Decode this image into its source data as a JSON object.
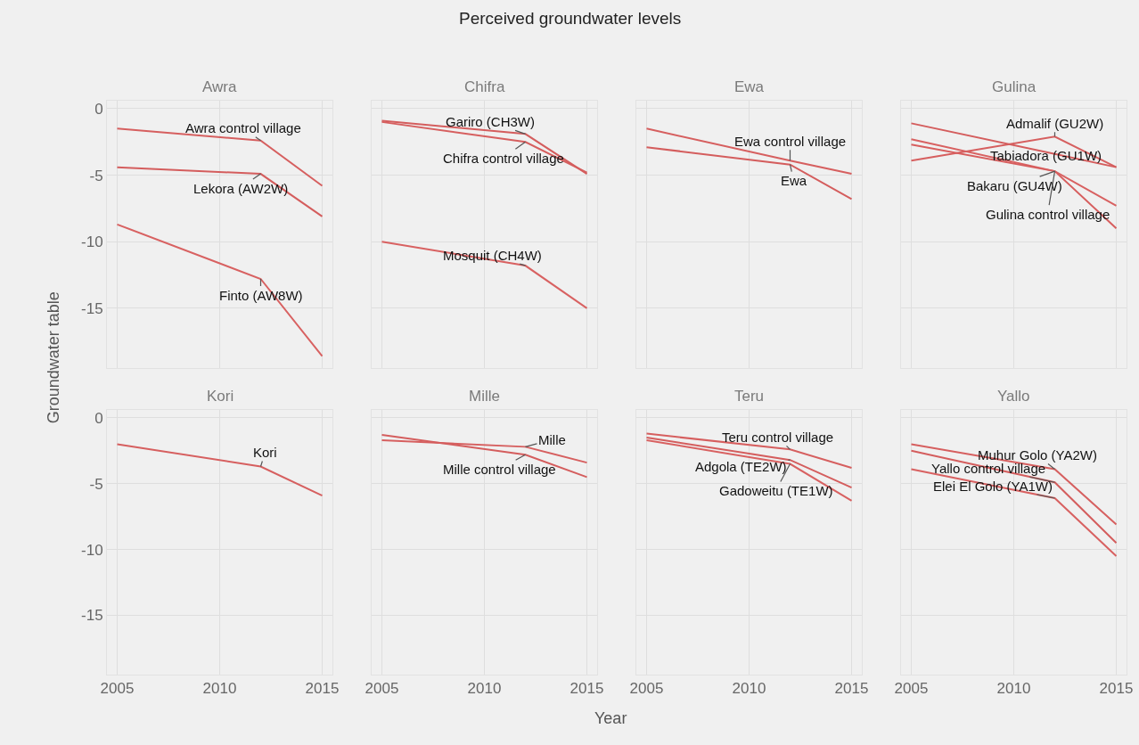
{
  "chart_data": [
    {
      "type": "line",
      "title": "Awra",
      "annotations": [
        "Perceived groundwater levels"
      ],
      "ylabel": "Groundwater table",
      "x": [
        2005,
        2012,
        2015
      ],
      "xlim": [
        2004.5,
        2015.5
      ],
      "ylim": [
        -19.5,
        0.6
      ],
      "xticks": [
        2005,
        2010,
        2015
      ],
      "yticks": [
        -15,
        -10,
        -5,
        0
      ],
      "grid": true,
      "tick_labels": "y",
      "series": [
        {
          "name": "Awra control village",
          "color": "#d65f5f",
          "values": [
            -1.5,
            -2.4,
            -5.8
          ]
        },
        {
          "name": "Lekora (AW2W)",
          "color": "#d45d5d",
          "values": [
            -4.4,
            -4.9,
            -8.1
          ]
        },
        {
          "name": "Finto (AW8W)",
          "color": "#d86161",
          "values": [
            -8.7,
            -12.8,
            -18.6
          ]
        }
      ]
    },
    {
      "type": "line",
      "title": "Chifra",
      "x": [
        2005,
        2012,
        2015
      ],
      "xlim": [
        2004.5,
        2015.5
      ],
      "ylim": [
        -19.5,
        0.6
      ],
      "xticks": [
        2005,
        2010,
        2015
      ],
      "yticks": [
        -15,
        -10,
        -5,
        0
      ],
      "grid": true,
      "tick_labels": false,
      "series": [
        {
          "name": "Chifra control village",
          "color": "#d65f5f",
          "values": [
            -1.0,
            -2.5,
            -4.8
          ]
        },
        {
          "name": "Gariro (CH3W)",
          "color": "#d45d5d",
          "values": [
            -0.9,
            -1.9,
            -4.9
          ]
        },
        {
          "name": "Mosquit (CH4W)",
          "color": "#d86161",
          "values": [
            -10.0,
            -11.8,
            -15.0
          ]
        }
      ]
    },
    {
      "type": "line",
      "title": "Ewa",
      "x": [
        2005,
        2012,
        2015
      ],
      "xlim": [
        2004.5,
        2015.5
      ],
      "ylim": [
        -19.5,
        0.6
      ],
      "xticks": [
        2005,
        2010,
        2015
      ],
      "yticks": [
        -15,
        -10,
        -5,
        0
      ],
      "grid": true,
      "tick_labels": false,
      "series": [
        {
          "name": "Ewa control village",
          "color": "#d65f5f",
          "values": [
            -1.5,
            -3.9,
            -4.9
          ]
        },
        {
          "name": "Ewa",
          "color": "#d45d5d",
          "values": [
            -2.9,
            -4.2,
            -6.8
          ]
        }
      ]
    },
    {
      "type": "line",
      "title": "Gulina",
      "x": [
        2005,
        2012,
        2015
      ],
      "xlim": [
        2004.5,
        2015.5
      ],
      "ylim": [
        -19.5,
        0.6
      ],
      "xticks": [
        2005,
        2010,
        2015
      ],
      "yticks": [
        -15,
        -10,
        -5,
        0
      ],
      "grid": true,
      "tick_labels": false,
      "series": [
        {
          "name": "Admalif (GU2W)",
          "color": "#d65f5f",
          "values": [
            -3.9,
            -2.1,
            -4.4
          ]
        },
        {
          "name": "Tabiadora (GU1W)",
          "color": "#d45d5d",
          "values": [
            -1.1,
            -3.4,
            -4.4
          ]
        },
        {
          "name": "Bakaru (GU4W)",
          "color": "#d86161",
          "values": [
            -2.3,
            -4.7,
            -7.3
          ]
        },
        {
          "name": "Gulina control village",
          "color": "#d75e5e",
          "values": [
            -2.7,
            -4.7,
            -9.0
          ]
        }
      ]
    },
    {
      "type": "line",
      "title": "Kori",
      "x": [
        2005,
        2012,
        2015
      ],
      "xlim": [
        2004.5,
        2015.5
      ],
      "ylim": [
        -19.5,
        0.6
      ],
      "xticks": [
        2005,
        2010,
        2015
      ],
      "yticks": [
        -15,
        -10,
        -5,
        0
      ],
      "grid": true,
      "series": [
        {
          "name": "Kori",
          "color": "#d65f5f",
          "values": [
            -2.0,
            -3.7,
            -5.9
          ]
        }
      ]
    },
    {
      "type": "line",
      "title": "Mille",
      "xlabel": "Year",
      "x": [
        2005,
        2012,
        2015
      ],
      "xlim": [
        2004.5,
        2015.5
      ],
      "ylim": [
        -19.5,
        0.6
      ],
      "xticks": [
        2005,
        2010,
        2015
      ],
      "yticks": [
        -15,
        -10,
        -5,
        0
      ],
      "grid": true,
      "tick_labels": "x",
      "series": [
        {
          "name": "Mille",
          "color": "#d65f5f",
          "values": [
            -1.7,
            -2.2,
            -3.4
          ]
        },
        {
          "name": "Mille control village",
          "color": "#d45d5d",
          "values": [
            -1.3,
            -2.8,
            -4.5
          ]
        }
      ]
    },
    {
      "type": "line",
      "title": "Teru",
      "x": [
        2005,
        2012,
        2015
      ],
      "xlim": [
        2004.5,
        2015.5
      ],
      "ylim": [
        -19.5,
        0.6
      ],
      "xticks": [
        2005,
        2010,
        2015
      ],
      "yticks": [
        -15,
        -10,
        -5,
        0
      ],
      "grid": true,
      "tick_labels": "x",
      "series": [
        {
          "name": "Teru control village",
          "color": "#d65f5f",
          "values": [
            -1.2,
            -2.4,
            -3.8
          ]
        },
        {
          "name": "Adgola (TE2W)",
          "color": "#d45d5d",
          "values": [
            -1.5,
            -3.2,
            -5.3
          ]
        },
        {
          "name": "Gadoweitu (TE1W)",
          "color": "#d86161",
          "values": [
            -1.7,
            -3.5,
            -6.3
          ]
        }
      ]
    },
    {
      "type": "line",
      "title": "Yallo",
      "x": [
        2005,
        2012,
        2015
      ],
      "xlim": [
        2004.5,
        2015.5
      ],
      "ylim": [
        -19.5,
        0.6
      ],
      "xticks": [
        2005,
        2010,
        2015
      ],
      "yticks": [
        -15,
        -10,
        -5,
        0
      ],
      "grid": true,
      "tick_labels": "x",
      "series": [
        {
          "name": "Muhur Golo (YA2W)",
          "color": "#d65f5f",
          "values": [
            -2.0,
            -3.9,
            -8.1
          ]
        },
        {
          "name": "Yallo control village",
          "color": "#d45d5d",
          "values": [
            -2.5,
            -4.9,
            -9.5
          ]
        },
        {
          "name": "Elei El Golo (YA1W)",
          "color": "#d86161",
          "values": [
            -3.9,
            -6.1,
            -10.5
          ]
        }
      ]
    }
  ]
}
